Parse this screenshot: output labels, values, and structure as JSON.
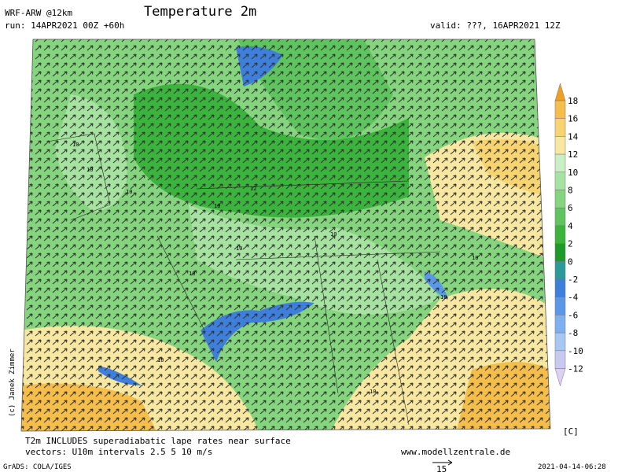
{
  "header": {
    "model": "WRF-ARW @12km",
    "run": "run: 14APR2021 00Z +60h",
    "title": "Temperature 2m",
    "valid": "valid: ???, 16APR2021 12Z"
  },
  "colorbar": {
    "unit": "[C]",
    "ticks": [
      18,
      16,
      14,
      12,
      10,
      8,
      6,
      4,
      2,
      0,
      -2,
      -4,
      -6,
      -8,
      -10,
      -12
    ],
    "colors": [
      "#f0a020",
      "#f5bd4a",
      "#f7d470",
      "#f8e7a0",
      "#c9efc4",
      "#a6e3a0",
      "#84d57e",
      "#5ec45e",
      "#3ab43c",
      "#1e9a2a",
      "#2a9a9a",
      "#3f7fdc",
      "#5a97e8",
      "#7eb0f0",
      "#a8c8f4",
      "#c8c8f0",
      "#dcd0f4"
    ]
  },
  "map": {
    "copyright": "(c) Janek Zimmer",
    "contour_labels": [
      "10",
      "10",
      "12",
      "10",
      "10",
      "10",
      "10",
      "10",
      "10",
      "10",
      "10",
      "10"
    ]
  },
  "footer": {
    "note": "T2m INCLUDES superadiabatic lape rates near surface",
    "vectors": "vectors: U10m intervals 2.5 5 10 m/s",
    "website": "www.modellzentrale.de",
    "grads": "GrADS: COLA/IGES",
    "vector_scale": "15",
    "timestamp": "2021-04-14-06:28"
  }
}
